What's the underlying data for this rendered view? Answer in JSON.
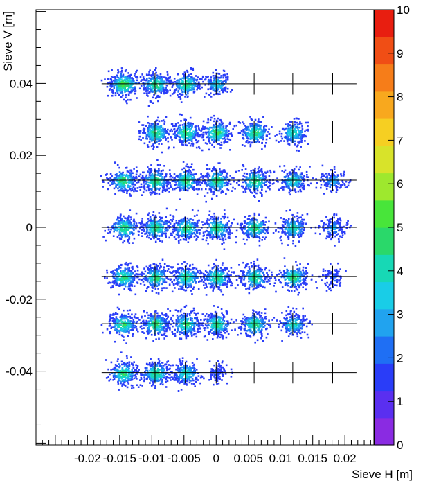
{
  "chart_data": {
    "type": "heatmap",
    "xlabel": "Sieve H [m]",
    "ylabel": "Sieve V [m]",
    "xlim": [
      -0.028,
      0.0245
    ],
    "ylim": [
      -0.0605,
      0.0605
    ],
    "zlim": [
      0,
      10
    ],
    "x_ticks": [
      {
        "value": -0.02,
        "label": "-0.02"
      },
      {
        "value": -0.015,
        "label": "-0.015"
      },
      {
        "value": -0.01,
        "label": "-0.01"
      },
      {
        "value": -0.005,
        "label": "-0.005"
      },
      {
        "value": 0,
        "label": "0"
      },
      {
        "value": 0.005,
        "label": "0.005"
      },
      {
        "value": 0.01,
        "label": "0.01"
      },
      {
        "value": 0.015,
        "label": "0.015"
      },
      {
        "value": 0.02,
        "label": "0.02"
      }
    ],
    "y_ticks": [
      {
        "value": -0.04,
        "label": "-0.04"
      },
      {
        "value": -0.02,
        "label": "-0.02"
      },
      {
        "value": 0,
        "label": "0"
      },
      {
        "value": 0.02,
        "label": "0.02"
      },
      {
        "value": 0.04,
        "label": "0.04"
      }
    ],
    "colorbar_ticks": [
      "0",
      "1",
      "2",
      "3",
      "4",
      "5",
      "6",
      "7",
      "8",
      "9",
      "10"
    ],
    "palette": [
      "#8a2be2",
      "#5a2ff0",
      "#2a3df8",
      "#1f6ff4",
      "#21a3ef",
      "#19cde7",
      "#17d8b5",
      "#2ad86a",
      "#48e53a",
      "#9ee82e",
      "#d8e32a",
      "#f6cf22",
      "#f8a81e",
      "#f67d19",
      "#f04e15",
      "#e81e10"
    ],
    "sieve_columns": [
      -0.0145,
      -0.0095,
      -0.0048,
      0.0,
      0.0059,
      0.0119,
      0.0181
    ],
    "sieve_rows": [
      0.0399,
      0.0265,
      0.0131,
      0.0,
      -0.0137,
      -0.0268,
      -0.0404
    ],
    "row_line_x_range": [
      -0.0178,
      0.0218
    ],
    "hole_marker_half_height": 0.003,
    "spot_grid": [
      [
        8,
        7,
        7,
        5,
        0,
        0,
        0
      ],
      [
        0,
        7,
        7,
        7,
        7,
        6,
        0
      ],
      [
        7,
        7,
        7,
        7,
        7,
        6,
        4
      ],
      [
        7,
        7,
        7,
        7,
        7,
        6,
        4
      ],
      [
        7,
        7,
        7,
        7,
        7,
        7,
        2
      ],
      [
        7,
        7,
        7,
        7,
        7,
        6,
        0
      ],
      [
        7,
        7,
        6,
        2,
        0,
        0,
        0
      ]
    ]
  }
}
